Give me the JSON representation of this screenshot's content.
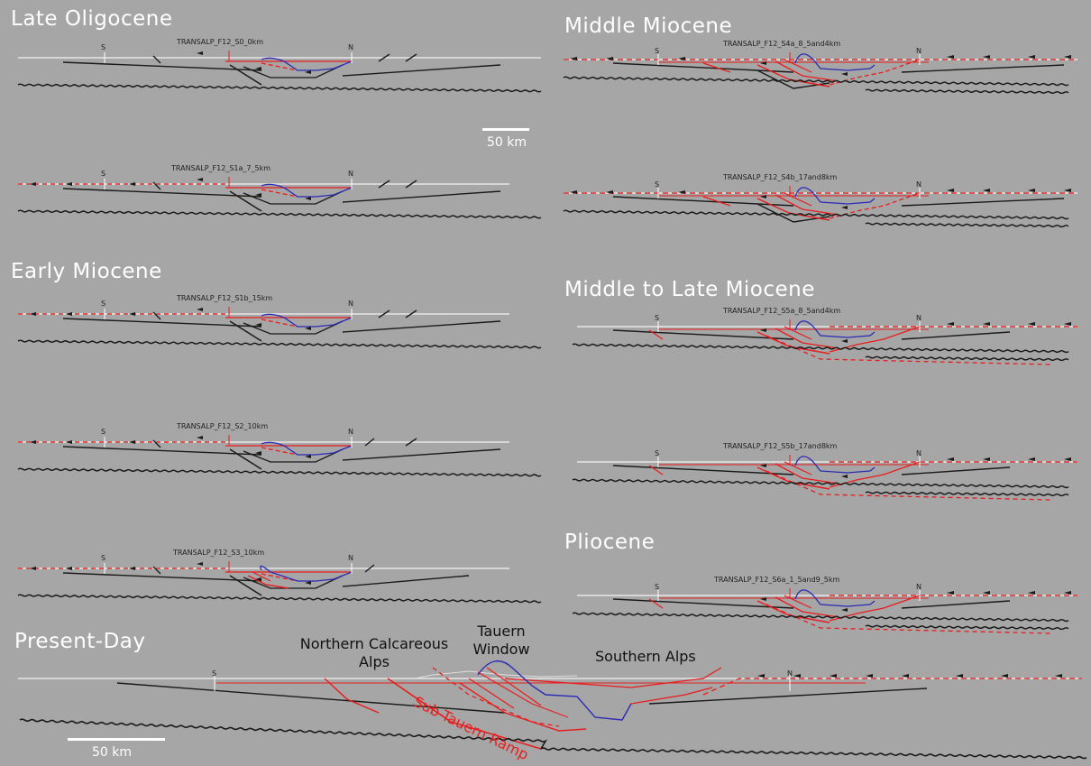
{
  "stages": {
    "late_oligocene": "Late Oligocene",
    "early_miocene": "Early Miocene",
    "middle_miocene": "Middle Miocene",
    "middle_late_miocene": "Middle to Late Miocene",
    "pliocene": "Pliocene",
    "present_day": "Present-Day"
  },
  "sections": [
    {
      "label": "TRANSALP_F12_S0_0km",
      "s": "S",
      "n": "N"
    },
    {
      "label": "TRANSALP_F12_S1a_7_5km",
      "s": "S",
      "n": "N"
    },
    {
      "label": "TRANSALP_F12_S1b_15km",
      "s": "S",
      "n": "N"
    },
    {
      "label": "TRANSALP_F12_S2_10km",
      "s": "S",
      "n": "N"
    },
    {
      "label": "TRANSALP_F12_S3_10km",
      "s": "S",
      "n": "N"
    },
    {
      "label": "TRANSALP_F12_S4a_8_5and4km",
      "s": "S",
      "n": "N"
    },
    {
      "label": "TRANSALP_F12_S4b_17and8km",
      "s": "S",
      "n": "N"
    },
    {
      "label": "TRANSALP_F12_S5a_8_5and4km",
      "s": "S",
      "n": "N"
    },
    {
      "label": "TRANSALP_F12_S5b_17and8km",
      "s": "S",
      "n": "N"
    },
    {
      "label": "TRANSALP_F12_S6a_1_5and9_5km",
      "s": "S",
      "n": "N"
    }
  ],
  "present": {
    "s": "S",
    "n": "N",
    "northern_calcareous_alps_1": "Northern Calcareous",
    "northern_calcareous_alps_2": "Alps",
    "tauern_window_1": "Tauern",
    "tauern_window_2": "Window",
    "southern_alps": "Southern Alps",
    "sub_tauern_ramp": "Sub-Tauern Ramp"
  },
  "scale_bar_top": "50 km",
  "scale_bar_bottom": "50 km",
  "colors": {
    "background": "#a6a6a6",
    "fault_red": "#e81d1d",
    "basin_blue": "#2b2bb5",
    "line_black": "#1a1a1a",
    "surface_white": "#f2f2f2"
  }
}
